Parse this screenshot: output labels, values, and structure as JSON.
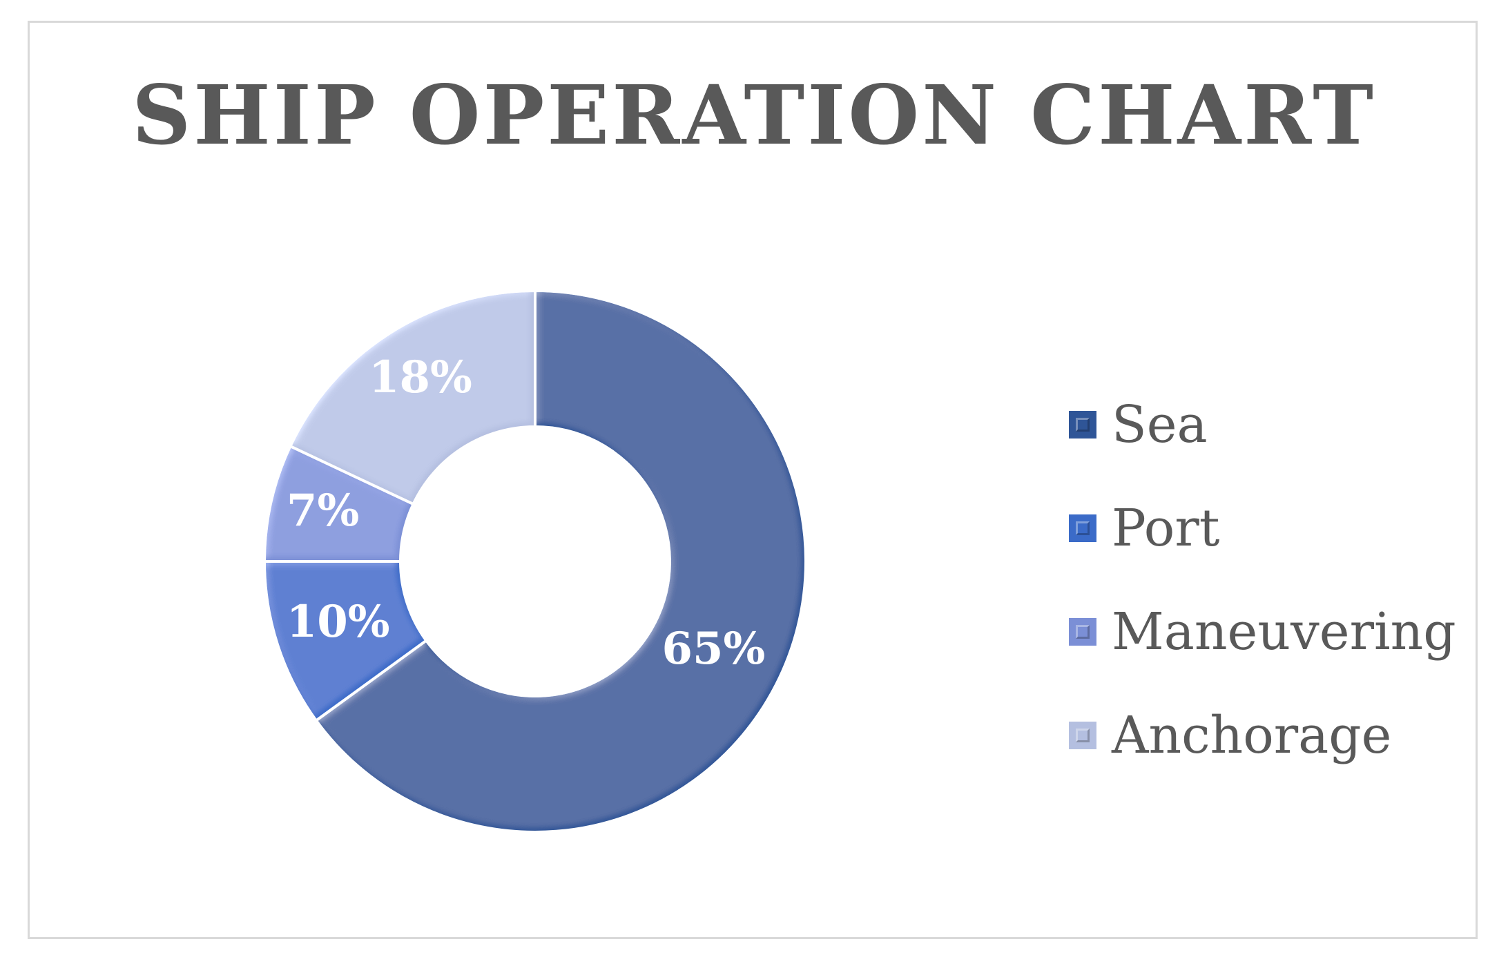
{
  "chart_data": {
    "type": "pie",
    "title": "SHIP OPERATION CHART",
    "categories": [
      "Sea",
      "Port",
      "Maneuvering",
      "Anchorage"
    ],
    "values": [
      65,
      10,
      7,
      18
    ],
    "data_labels": [
      "65%",
      "10%",
      "7%",
      "18%"
    ],
    "colors": [
      "#2f5597",
      "#3b6bc8",
      "#7b8fd6",
      "#b4bfe0"
    ],
    "donut": true,
    "start_angle": 0,
    "direction": "clockwise",
    "legend_position": "right"
  }
}
